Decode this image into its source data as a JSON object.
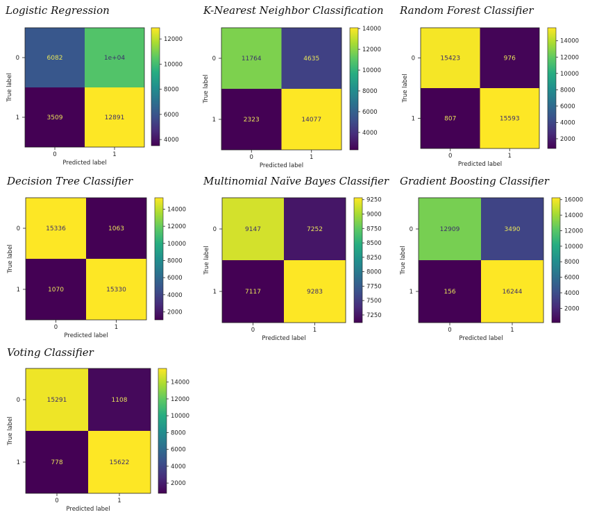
{
  "chart_data": [
    {
      "type": "heatmap",
      "title": "Logistic Regression",
      "xlabel": "Predicted label",
      "ylabel": "True label",
      "x_ticks": [
        "0",
        "1"
      ],
      "y_ticks": [
        "0",
        "1"
      ],
      "values": [
        [
          6082,
          10317
        ],
        [
          3509,
          12891
        ]
      ],
      "cell_labels": [
        [
          "6082",
          "1e+04"
        ],
        [
          "3509",
          "12891"
        ]
      ],
      "colorbar_ticks": [
        4000,
        6000,
        8000,
        10000,
        12000
      ],
      "colorbar_range": [
        3509,
        12891
      ]
    },
    {
      "type": "heatmap",
      "title": "K-Nearest Neighbor Classification",
      "xlabel": "Predicted label",
      "ylabel": "True label",
      "x_ticks": [
        "0",
        "1"
      ],
      "y_ticks": [
        "0",
        "1"
      ],
      "values": [
        [
          11764,
          4635
        ],
        [
          2323,
          14077
        ]
      ],
      "cell_labels": [
        [
          "11764",
          "4635"
        ],
        [
          "2323",
          "14077"
        ]
      ],
      "colorbar_ticks": [
        4000,
        6000,
        8000,
        10000,
        12000,
        14000
      ],
      "colorbar_range": [
        2323,
        14077
      ]
    },
    {
      "type": "heatmap",
      "title": "Random Forest Classifier",
      "xlabel": "Predicted label",
      "ylabel": "True label",
      "x_ticks": [
        "0",
        "1"
      ],
      "y_ticks": [
        "0",
        "1"
      ],
      "values": [
        [
          15423,
          976
        ],
        [
          807,
          15593
        ]
      ],
      "cell_labels": [
        [
          "15423",
          "976"
        ],
        [
          "807",
          "15593"
        ]
      ],
      "colorbar_ticks": [
        2000,
        4000,
        6000,
        8000,
        10000,
        12000,
        14000
      ],
      "colorbar_range": [
        807,
        15593
      ]
    },
    {
      "type": "heatmap",
      "title": "Decision Tree Classifier",
      "xlabel": "Predicted label",
      "ylabel": "True label",
      "x_ticks": [
        "0",
        "1"
      ],
      "y_ticks": [
        "0",
        "1"
      ],
      "values": [
        [
          15336,
          1063
        ],
        [
          1070,
          15330
        ]
      ],
      "cell_labels": [
        [
          "15336",
          "1063"
        ],
        [
          "1070",
          "15330"
        ]
      ],
      "colorbar_ticks": [
        2000,
        4000,
        6000,
        8000,
        10000,
        12000,
        14000
      ],
      "colorbar_range": [
        1063,
        15336
      ]
    },
    {
      "type": "heatmap",
      "title": "Multinomial Naïve Bayes Classifier",
      "xlabel": "Predicted label",
      "ylabel": "True label",
      "x_ticks": [
        "0",
        "1"
      ],
      "y_ticks": [
        "0",
        "1"
      ],
      "values": [
        [
          9147,
          7252
        ],
        [
          7117,
          9283
        ]
      ],
      "cell_labels": [
        [
          "9147",
          "7252"
        ],
        [
          "7117",
          "9283"
        ]
      ],
      "colorbar_ticks": [
        7250,
        7500,
        7750,
        8000,
        8250,
        8500,
        8750,
        9000,
        9250
      ],
      "colorbar_range": [
        7117,
        9283
      ]
    },
    {
      "type": "heatmap",
      "title": "Gradient Boosting Classifier",
      "xlabel": "Predicted label",
      "ylabel": "True label",
      "x_ticks": [
        "0",
        "1"
      ],
      "y_ticks": [
        "0",
        "1"
      ],
      "values": [
        [
          12909,
          3490
        ],
        [
          156,
          16244
        ]
      ],
      "cell_labels": [
        [
          "12909",
          "3490"
        ],
        [
          "156",
          "16244"
        ]
      ],
      "colorbar_ticks": [
        2000,
        4000,
        6000,
        8000,
        10000,
        12000,
        14000,
        16000
      ],
      "colorbar_range": [
        156,
        16244
      ]
    },
    {
      "type": "heatmap",
      "title": "Voting Classifier",
      "xlabel": "Predicted label",
      "ylabel": "True label",
      "x_ticks": [
        "0",
        "1"
      ],
      "y_ticks": [
        "0",
        "1"
      ],
      "values": [
        [
          15291,
          1108
        ],
        [
          778,
          15622
        ]
      ],
      "cell_labels": [
        [
          "15291",
          "1108"
        ],
        [
          "778",
          "15622"
        ]
      ],
      "colorbar_ticks": [
        2000,
        4000,
        6000,
        8000,
        10000,
        12000,
        14000
      ],
      "colorbar_range": [
        778,
        15622
      ]
    }
  ],
  "colormap": "viridis",
  "colors": {
    "text_on_dark": "#e8e55a",
    "text_on_light": "#3b2d6b",
    "axis": "#222222"
  }
}
